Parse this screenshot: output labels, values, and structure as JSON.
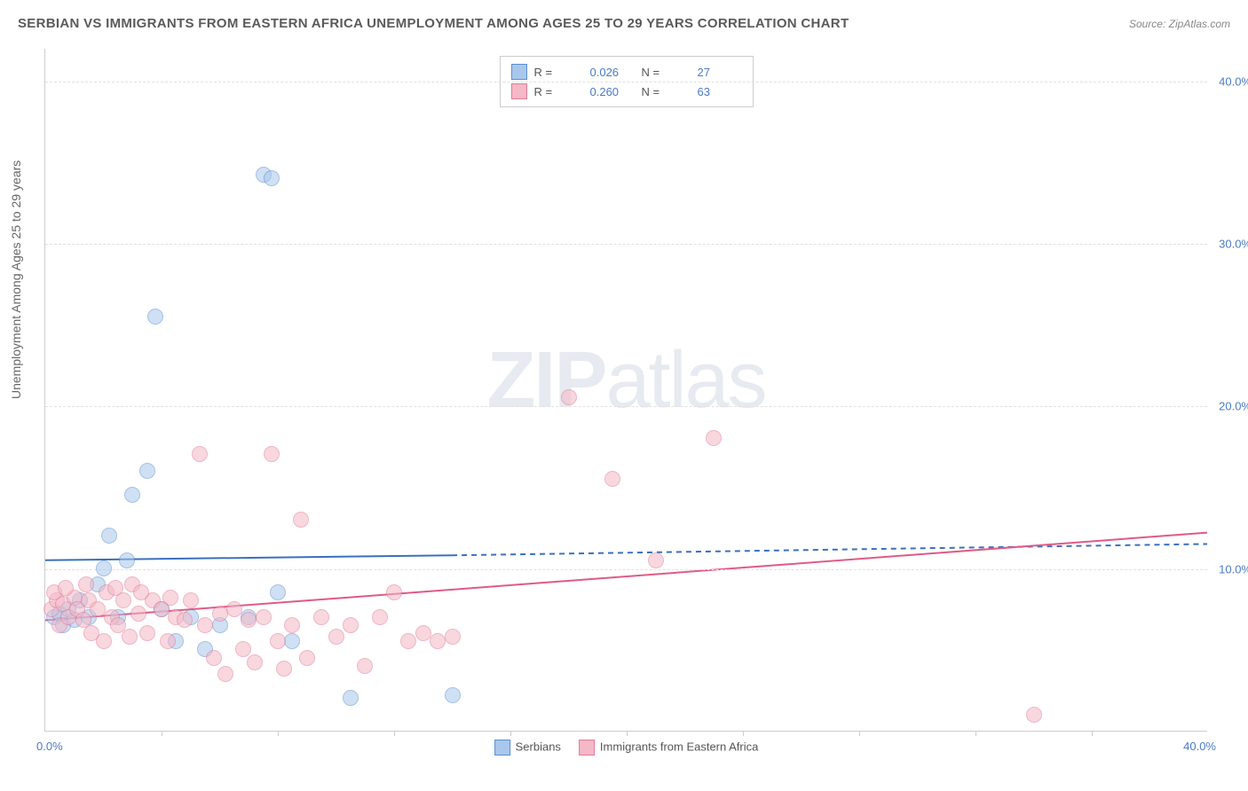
{
  "title": "SERBIAN VS IMMIGRANTS FROM EASTERN AFRICA UNEMPLOYMENT AMONG AGES 25 TO 29 YEARS CORRELATION CHART",
  "source": "Source: ZipAtlas.com",
  "ylabel": "Unemployment Among Ages 25 to 29 years",
  "watermark_a": "ZIP",
  "watermark_b": "atlas",
  "chart": {
    "type": "scatter",
    "xlim": [
      0,
      40
    ],
    "ylim": [
      0,
      42
    ],
    "xticks": [
      0,
      40
    ],
    "xtick_labels": [
      "0.0%",
      "40.0%"
    ],
    "xtick_marks": [
      4,
      8,
      12,
      16,
      20,
      24,
      28,
      32,
      36
    ],
    "yticks": [
      10,
      20,
      30,
      40
    ],
    "ytick_labels": [
      "10.0%",
      "20.0%",
      "30.0%",
      "40.0%"
    ],
    "background_color": "#ffffff",
    "grid_color": "#e0e0e0",
    "tick_label_color": "#4a7bc8",
    "axis_label_color": "#666666",
    "marker_radius": 9,
    "marker_opacity": 0.55,
    "series": [
      {
        "name": "Serbians",
        "fill": "#a9c7ea",
        "stroke": "#5a8fd6",
        "R": "0.026",
        "N": "27",
        "trend": {
          "x1": 0,
          "y1": 10.5,
          "x2": 14,
          "y2": 10.8,
          "x2_dash": 40,
          "y2_dash": 11.5,
          "color": "#3a6fc0",
          "width": 2
        },
        "points": [
          [
            0.3,
            7.0
          ],
          [
            0.5,
            7.2
          ],
          [
            0.6,
            6.5
          ],
          [
            0.8,
            7.5
          ],
          [
            1.0,
            6.8
          ],
          [
            1.2,
            8.0
          ],
          [
            1.5,
            7.0
          ],
          [
            1.8,
            9.0
          ],
          [
            2.0,
            10.0
          ],
          [
            2.2,
            12.0
          ],
          [
            2.5,
            7.0
          ],
          [
            2.8,
            10.5
          ],
          [
            3.0,
            14.5
          ],
          [
            3.5,
            16.0
          ],
          [
            3.8,
            25.5
          ],
          [
            4.5,
            5.5
          ],
          [
            5.0,
            7.0
          ],
          [
            5.5,
            5.0
          ],
          [
            6.0,
            6.5
          ],
          [
            7.0,
            7.0
          ],
          [
            7.5,
            34.2
          ],
          [
            7.8,
            34.0
          ],
          [
            8.0,
            8.5
          ],
          [
            8.5,
            5.5
          ],
          [
            10.5,
            2.0
          ],
          [
            14.0,
            2.2
          ],
          [
            4.0,
            7.5
          ]
        ]
      },
      {
        "name": "Immigrants from Eastern Africa",
        "fill": "#f4b8c6",
        "stroke": "#e27a96",
        "R": "0.260",
        "N": "63",
        "trend": {
          "x1": 0,
          "y1": 6.8,
          "x2": 40,
          "y2": 12.2,
          "color": "#e05a85",
          "width": 2
        },
        "points": [
          [
            0.2,
            7.5
          ],
          [
            0.4,
            8.0
          ],
          [
            0.5,
            6.5
          ],
          [
            0.6,
            7.8
          ],
          [
            0.8,
            7.0
          ],
          [
            1.0,
            8.2
          ],
          [
            1.1,
            7.5
          ],
          [
            1.3,
            6.8
          ],
          [
            1.5,
            8.0
          ],
          [
            1.6,
            6.0
          ],
          [
            1.8,
            7.5
          ],
          [
            2.0,
            5.5
          ],
          [
            2.1,
            8.5
          ],
          [
            2.3,
            7.0
          ],
          [
            2.5,
            6.5
          ],
          [
            2.7,
            8.0
          ],
          [
            2.9,
            5.8
          ],
          [
            3.0,
            9.0
          ],
          [
            3.2,
            7.2
          ],
          [
            3.5,
            6.0
          ],
          [
            3.7,
            8.0
          ],
          [
            4.0,
            7.5
          ],
          [
            4.2,
            5.5
          ],
          [
            4.5,
            7.0
          ],
          [
            4.8,
            6.8
          ],
          [
            5.0,
            8.0
          ],
          [
            5.3,
            17.0
          ],
          [
            5.5,
            6.5
          ],
          [
            5.8,
            4.5
          ],
          [
            6.0,
            7.2
          ],
          [
            6.2,
            3.5
          ],
          [
            6.5,
            7.5
          ],
          [
            6.8,
            5.0
          ],
          [
            7.0,
            6.8
          ],
          [
            7.2,
            4.2
          ],
          [
            7.5,
            7.0
          ],
          [
            7.8,
            17.0
          ],
          [
            8.0,
            5.5
          ],
          [
            8.2,
            3.8
          ],
          [
            8.5,
            6.5
          ],
          [
            8.8,
            13.0
          ],
          [
            9.0,
            4.5
          ],
          [
            9.5,
            7.0
          ],
          [
            10.0,
            5.8
          ],
          [
            10.5,
            6.5
          ],
          [
            11.0,
            4.0
          ],
          [
            11.5,
            7.0
          ],
          [
            12.0,
            8.5
          ],
          [
            12.5,
            5.5
          ],
          [
            13.0,
            6.0
          ],
          [
            13.5,
            5.5
          ],
          [
            14.0,
            5.8
          ],
          [
            18.0,
            20.5
          ],
          [
            19.5,
            15.5
          ],
          [
            21.0,
            10.5
          ],
          [
            23.0,
            18.0
          ],
          [
            34.0,
            1.0
          ],
          [
            0.3,
            8.5
          ],
          [
            0.7,
            8.8
          ],
          [
            1.4,
            9.0
          ],
          [
            2.4,
            8.8
          ],
          [
            3.3,
            8.5
          ],
          [
            4.3,
            8.2
          ]
        ]
      }
    ]
  },
  "legend_top": {
    "rows": [
      {
        "R_label": "R =",
        "N_label": "N ="
      },
      {
        "R_label": "R =",
        "N_label": "N ="
      }
    ]
  }
}
